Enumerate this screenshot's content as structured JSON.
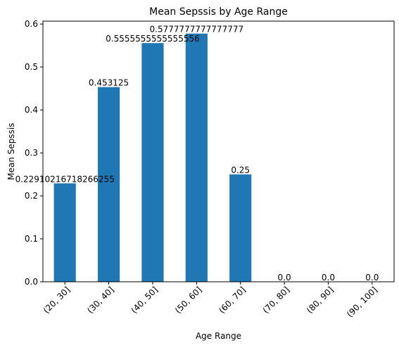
{
  "chart_data": {
    "type": "bar",
    "title": "Mean Sepssis by Age Range",
    "xlabel": "Age Range",
    "ylabel": "Mean Sepssis",
    "categories": [
      "(20, 30]",
      "(30, 40]",
      "(40, 50]",
      "(50, 60]",
      "(60, 70]",
      "(70, 80]",
      "(80, 90]",
      "(90, 100]"
    ],
    "values": [
      0.22910216718266255,
      0.453125,
      0.5555555555555556,
      0.5777777777777777,
      0.25,
      0.0,
      0.0,
      0.0
    ],
    "value_labels": [
      "0.22910216718266255",
      "0.453125",
      "0.5555555555555556",
      "0.5777777777777777",
      "0.25",
      "0.0",
      "0.0",
      "0.0"
    ],
    "ylim": [
      0,
      0.6067
    ],
    "yticks": [
      0.0,
      0.1,
      0.2,
      0.3,
      0.4,
      0.5,
      0.6
    ],
    "ytick_labels": [
      "0.0",
      "0.1",
      "0.2",
      "0.3",
      "0.4",
      "0.5",
      "0.6"
    ],
    "bar_color": "#1f77b4",
    "grid": false,
    "legend": "none"
  }
}
